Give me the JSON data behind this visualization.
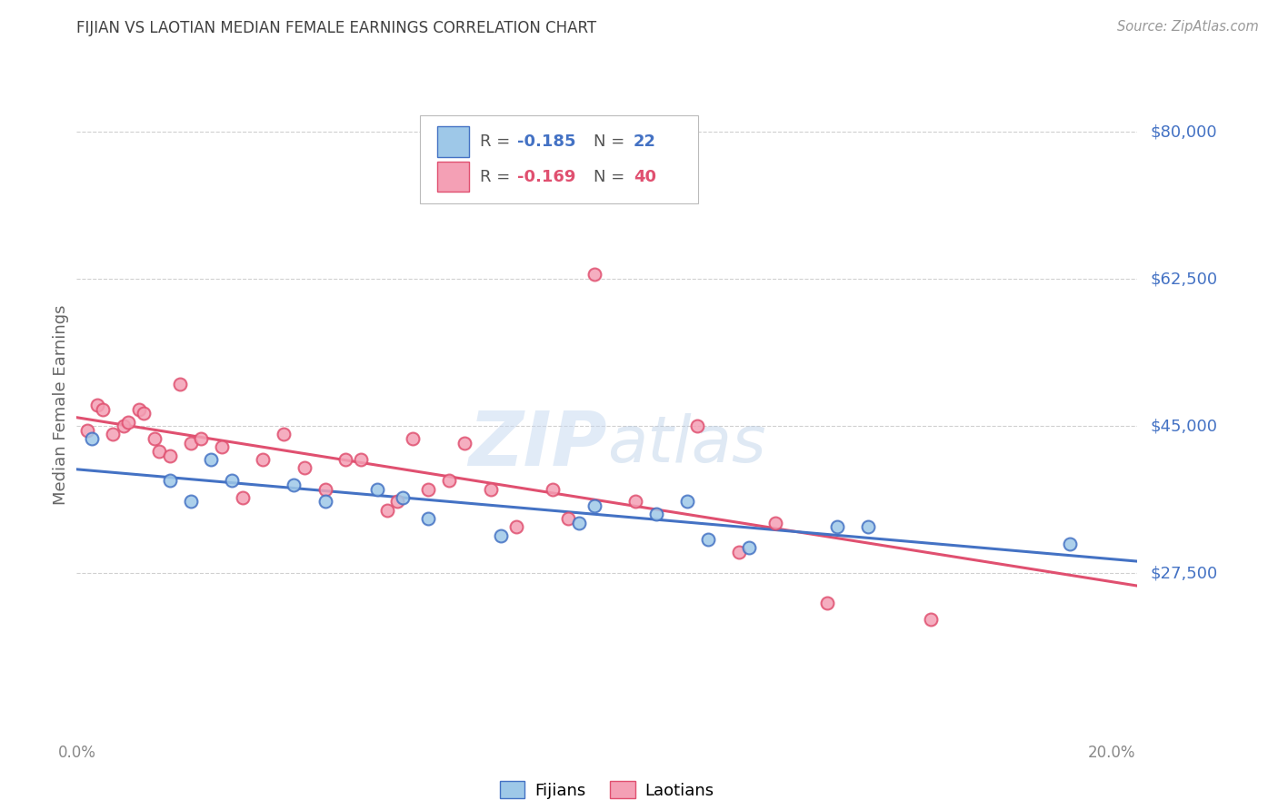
{
  "title": "FIJIAN VS LAOTIAN MEDIAN FEMALE EARNINGS CORRELATION CHART",
  "source": "Source: ZipAtlas.com",
  "ylabel": "Median Female Earnings",
  "xlim": [
    0.0,
    0.205
  ],
  "ylim": [
    8000,
    87000
  ],
  "yticks": [
    27500,
    45000,
    62500,
    80000
  ],
  "ytick_labels": [
    "$27,500",
    "$45,000",
    "$62,500",
    "$80,000"
  ],
  "xticks": [
    0.0,
    0.025,
    0.05,
    0.075,
    0.1,
    0.125,
    0.15,
    0.175,
    0.2
  ],
  "fijian_color": "#9EC8E8",
  "laotian_color": "#F4A0B5",
  "fijian_line_color": "#4472C4",
  "laotian_line_color": "#E05070",
  "background_color": "#ffffff",
  "grid_color": "#d0d0d0",
  "title_color": "#404040",
  "axis_label_color": "#666666",
  "right_label_color": "#4472C4",
  "fijian_x": [
    0.003,
    0.018,
    0.022,
    0.026,
    0.03,
    0.042,
    0.048,
    0.058,
    0.063,
    0.068,
    0.082,
    0.097,
    0.1,
    0.112,
    0.118,
    0.122,
    0.13,
    0.147,
    0.153,
    0.192
  ],
  "fijian_y": [
    43500,
    38500,
    36000,
    41000,
    38500,
    38000,
    36000,
    37500,
    36500,
    34000,
    32000,
    33500,
    35500,
    34500,
    36000,
    31500,
    30500,
    33000,
    33000,
    31000
  ],
  "laotian_x": [
    0.002,
    0.004,
    0.005,
    0.007,
    0.009,
    0.01,
    0.012,
    0.013,
    0.015,
    0.016,
    0.018,
    0.02,
    0.022,
    0.024,
    0.028,
    0.032,
    0.036,
    0.04,
    0.044,
    0.048,
    0.052,
    0.055,
    0.06,
    0.062,
    0.065,
    0.068,
    0.072,
    0.075,
    0.08,
    0.085,
    0.092,
    0.095,
    0.1,
    0.108,
    0.12,
    0.128,
    0.135,
    0.145,
    0.165
  ],
  "laotian_y": [
    44500,
    47500,
    47000,
    44000,
    45000,
    45500,
    47000,
    46500,
    43500,
    42000,
    41500,
    50000,
    43000,
    43500,
    42500,
    36500,
    41000,
    44000,
    40000,
    37500,
    41000,
    41000,
    35000,
    36000,
    43500,
    37500,
    38500,
    43000,
    37500,
    33000,
    37500,
    34000,
    63000,
    36000,
    45000,
    30000,
    33500,
    24000,
    22000
  ],
  "marker_size": 100,
  "marker_linewidth": 1.5,
  "line_width": 2.2
}
